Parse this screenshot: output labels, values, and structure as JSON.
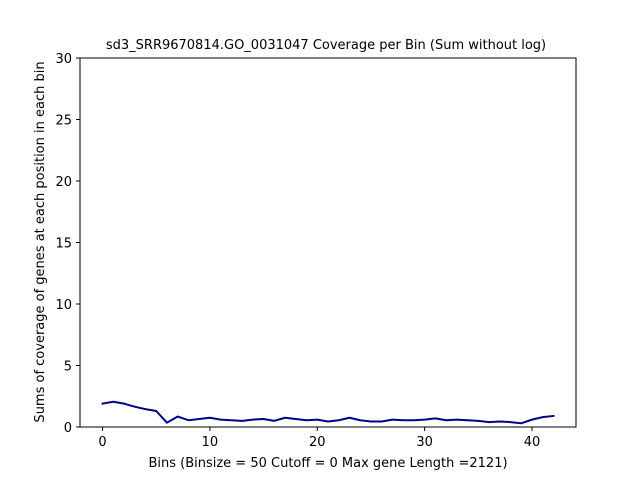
{
  "chart_data": {
    "type": "line",
    "title": "sd3_SRR9670814.GO_0031047 Coverage per Bin (Sum without log)",
    "xlabel": "Bins  (Binsize = 50 Cutoff = 0 Max gene Length =2121)",
    "ylabel": "Sums of coverage of genes at each position in each bin",
    "xlim": [
      -2.1,
      44.1
    ],
    "ylim": [
      0,
      30
    ],
    "xticks": [
      0,
      10,
      20,
      30,
      40
    ],
    "yticks": [
      0,
      5,
      10,
      15,
      20,
      25,
      30
    ],
    "grid": false,
    "series": [
      {
        "color": "#00008b",
        "x": [
          0,
          1,
          2,
          3,
          4,
          5,
          6,
          7,
          8,
          9,
          10,
          11,
          12,
          13,
          14,
          15,
          16,
          17,
          18,
          19,
          20,
          21,
          22,
          23,
          24,
          25,
          26,
          27,
          28,
          29,
          30,
          31,
          32,
          33,
          34,
          35,
          36,
          37,
          38,
          39,
          40,
          41,
          42
        ],
        "y": [
          1.9,
          2.05,
          1.9,
          1.65,
          1.45,
          1.3,
          0.35,
          0.85,
          0.55,
          0.65,
          0.75,
          0.6,
          0.55,
          0.5,
          0.6,
          0.65,
          0.5,
          0.75,
          0.65,
          0.55,
          0.6,
          0.45,
          0.55,
          0.75,
          0.55,
          0.45,
          0.45,
          0.6,
          0.55,
          0.55,
          0.6,
          0.7,
          0.55,
          0.6,
          0.55,
          0.5,
          0.4,
          0.45,
          0.4,
          0.3,
          0.6,
          0.8,
          0.9
        ]
      }
    ]
  }
}
